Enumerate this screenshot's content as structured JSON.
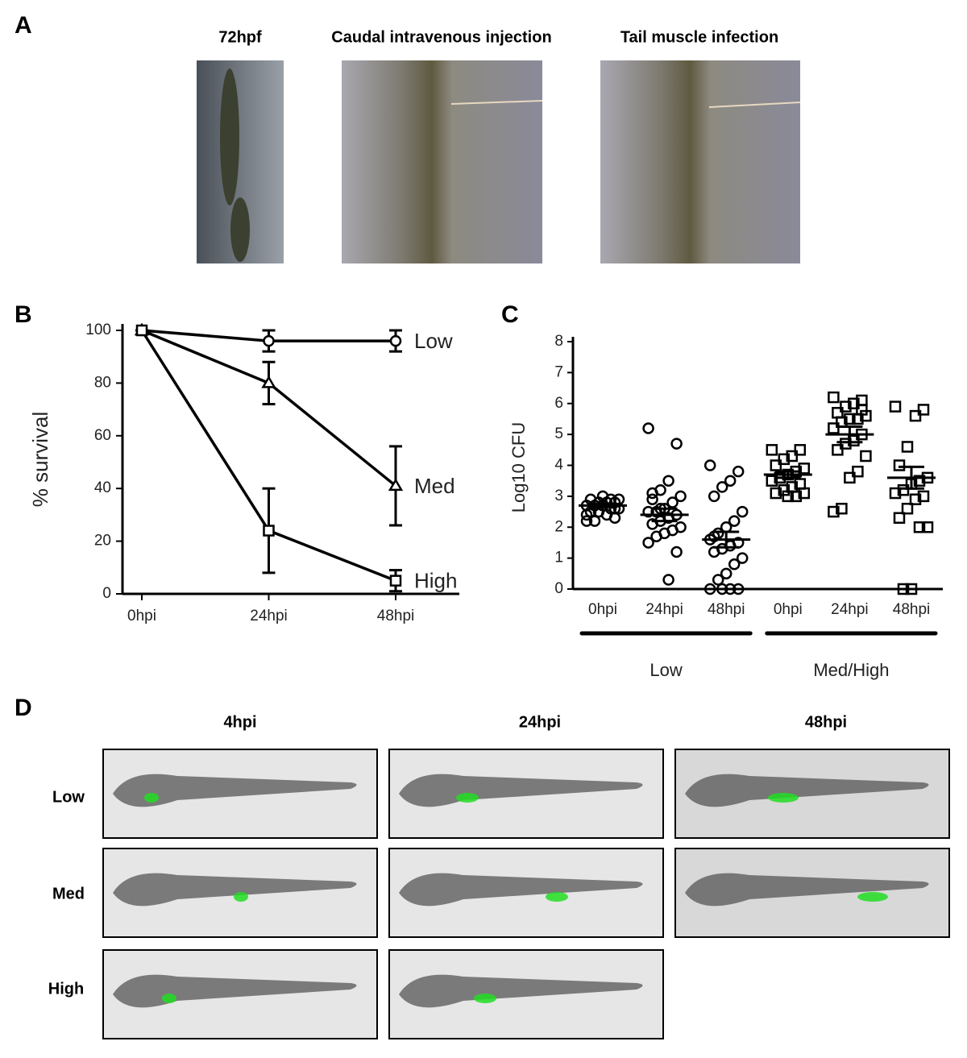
{
  "panel_a": {
    "letter": "A",
    "image_titles": [
      "72hpf",
      "Caudal intravenous injection",
      "Tail muscle infection"
    ]
  },
  "panel_b": {
    "letter": "B"
  },
  "panel_c": {
    "letter": "C"
  },
  "panel_d": {
    "letter": "D",
    "columns": [
      "4hpi",
      "24hpi",
      "48hpi"
    ],
    "rows": [
      "Low",
      "Med",
      "High"
    ]
  },
  "chart_data": [
    {
      "type": "line",
      "categories": [
        "0hpi",
        "24hpi",
        "48hpi"
      ],
      "ylabel": "% survival",
      "ylim": [
        0,
        100
      ],
      "yticks": [
        0,
        20,
        40,
        60,
        80,
        100
      ],
      "series": [
        {
          "name": "Low",
          "marker": "circle",
          "color": "#000000",
          "values": [
            100,
            96,
            96
          ],
          "errors": [
            0,
            4,
            4
          ]
        },
        {
          "name": "Med",
          "marker": "triangle",
          "color": "#000000",
          "values": [
            100,
            80,
            41
          ],
          "errors": [
            0,
            8,
            15
          ]
        },
        {
          "name": "High",
          "marker": "square",
          "color": "#000000",
          "values": [
            100,
            24,
            5
          ],
          "errors": [
            0,
            16,
            4
          ]
        }
      ]
    },
    {
      "type": "strip",
      "ylabel": "Log10 CFU",
      "ylim": [
        0,
        8
      ],
      "yticks": [
        0,
        1,
        2,
        3,
        4,
        5,
        6,
        7,
        8
      ],
      "series": [
        {
          "name": "Low",
          "marker": "circle",
          "color": "#000000",
          "categories": [
            "0hpi",
            "24hpi",
            "48hpi"
          ],
          "values": [
            [
              2.2,
              2.3,
              2.4,
              2.5,
              2.5,
              2.6,
              2.6,
              2.7,
              2.7,
              2.7,
              2.8,
              2.8,
              2.8,
              2.9,
              2.9,
              2.9,
              3.0,
              2.2,
              2.4,
              2.6
            ],
            [
              5.2,
              4.7,
              3.5,
              3.2,
              3.1,
              3.0,
              2.8,
              2.6,
              2.5,
              2.5,
              2.4,
              2.3,
              2.2,
              2.1,
              2.0,
              1.9,
              1.8,
              1.7,
              1.5,
              1.2,
              0.3,
              2.6,
              2.9
            ],
            [
              4.0,
              3.8,
              3.5,
              3.3,
              3.0,
              2.5,
              2.2,
              2.0,
              1.8,
              1.6,
              1.5,
              1.4,
              1.3,
              1.2,
              1.0,
              0.8,
              0.5,
              0.3,
              0,
              0,
              0,
              0,
              1.7
            ]
          ],
          "means": [
            2.7,
            2.4,
            1.6
          ],
          "sem": [
            0.06,
            0.2,
            0.25
          ]
        },
        {
          "name": "Med/High",
          "marker": "square",
          "color": "#000000",
          "categories": [
            "0hpi",
            "24hpi",
            "48hpi"
          ],
          "values": [
            [
              4.5,
              4.5,
              4.3,
              4.2,
              4.0,
              3.9,
              3.8,
              3.7,
              3.6,
              3.5,
              3.4,
              3.3,
              3.2,
              3.1,
              3.1,
              3.0,
              3.0,
              3.6
            ],
            [
              6.2,
              6.1,
              6.0,
              5.9,
              5.7,
              5.6,
              5.5,
              5.5,
              5.4,
              5.2,
              5.0,
              4.8,
              4.7,
              4.5,
              4.3,
              3.8,
              3.6,
              2.6,
              2.5,
              5.8
            ],
            [
              5.9,
              5.8,
              5.6,
              4.6,
              4.0,
              3.6,
              3.5,
              3.4,
              3.2,
              3.1,
              3.0,
              2.9,
              2.6,
              2.3,
              2.0,
              2.0,
              0,
              0
            ]
          ],
          "means": [
            3.7,
            5.0,
            3.6
          ],
          "sem": [
            0.1,
            0.25,
            0.35
          ]
        }
      ]
    }
  ]
}
